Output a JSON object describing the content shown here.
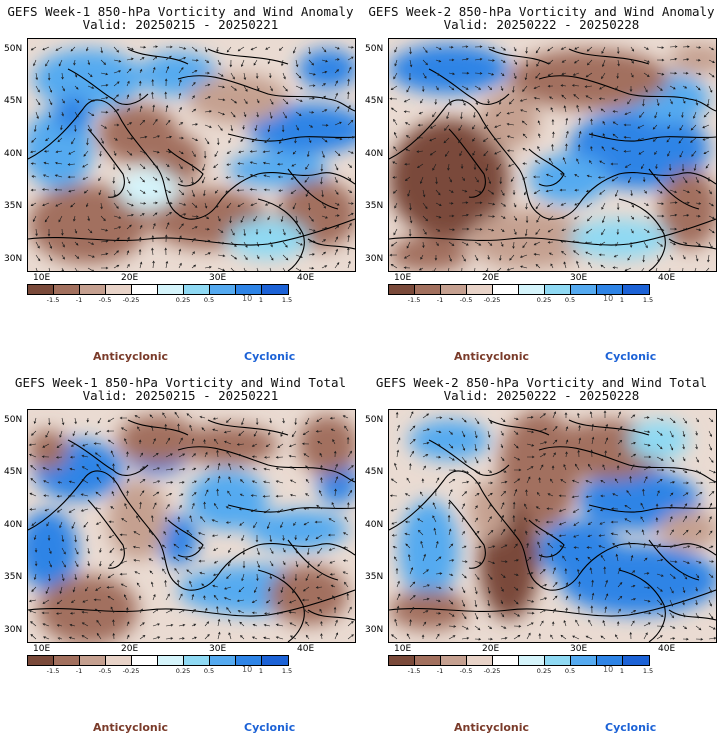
{
  "colors": {
    "scale": [
      "#7a4a3a",
      "#a2705e",
      "#c5a090",
      "#e8d3c8",
      "#ffffff",
      "#d5f4fb",
      "#8fd9f3",
      "#55aaf0",
      "#2e84e6",
      "#1c62d6"
    ],
    "anticyclonic": "#7a3b2a",
    "cyclonic": "#1c62d6",
    "coastline": "#000000",
    "arrows": "#1a1a1a"
  },
  "colorbar": {
    "tick_labels": [
      "-1.5",
      "-1",
      "-0.5",
      "-0.25",
      "0.25",
      "0.5",
      "1",
      "1.5"
    ],
    "unit": "10"
  },
  "legend": {
    "anticyclonic": "Anticyclonic",
    "cyclonic": "Cyclonic"
  },
  "axes": {
    "lat_labels": [
      "50N",
      "45N",
      "40N",
      "35N",
      "30N"
    ],
    "lon_labels": [
      "10E",
      "20E",
      "30E",
      "40E"
    ]
  },
  "panels": [
    {
      "title": "GEFS Week-1 850-hPa Vorticity and Wind Anomaly",
      "valid": "Valid: 20250215 - 20250221"
    },
    {
      "title": "GEFS Week-2 850-hPa Vorticity and Wind Anomaly",
      "valid": "Valid: 20250222 - 20250228"
    },
    {
      "title": "GEFS Week-1 850-hPa Vorticity and Wind Total",
      "valid": "Valid: 20250215 - 20250221"
    },
    {
      "title": "GEFS Week-2 850-hPa Vorticity and Wind Total",
      "valid": "Valid: 20250222 - 20250228"
    }
  ]
}
